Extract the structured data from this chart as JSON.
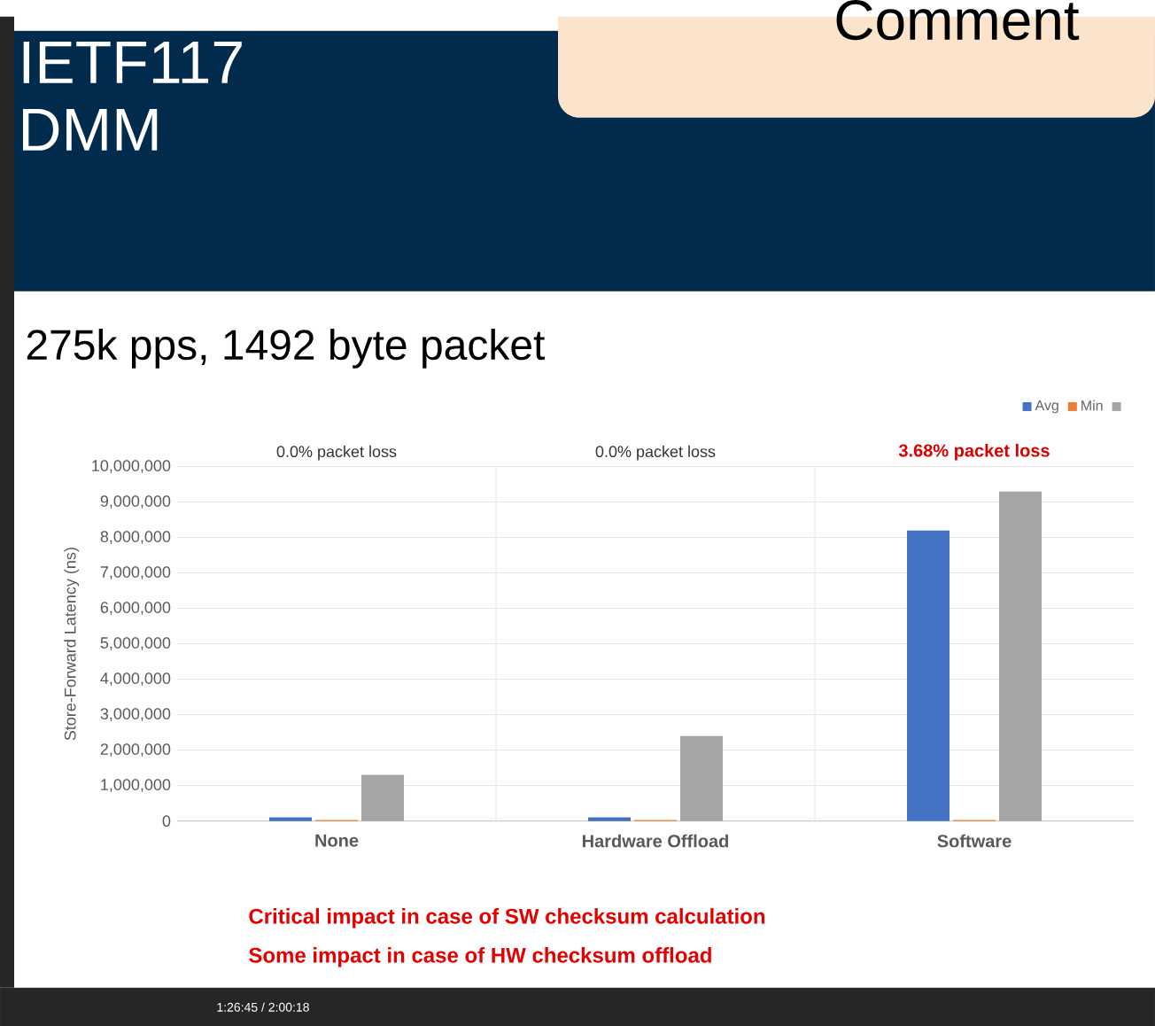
{
  "chart_data": {
    "type": "bar",
    "title": "IETF117\nDMM",
    "subtitle": "275k pps, 1492 byte packet",
    "ylabel": "Store-Forward Latency (ns)",
    "categories": [
      "None",
      "Hardware Offload",
      "Software"
    ],
    "series": [
      {
        "name": "Avg",
        "color": "#4472c4",
        "values": [
          100000,
          100000,
          8200000
        ]
      },
      {
        "name": "Min",
        "color": "#ed7d31",
        "values": [
          30000,
          30000,
          30000
        ]
      },
      {
        "color": "#a5a5a5",
        "values": [
          1300000,
          2400000,
          9300000
        ]
      }
    ],
    "ylim": [
      0,
      10000000
    ],
    "yticks": [
      {
        "value": 0,
        "label": "0"
      },
      {
        "value": 1000000,
        "label": "1,000,000"
      },
      {
        "value": 2000000,
        "label": "2,000,000"
      },
      {
        "value": 3000000,
        "label": "3,000,000"
      },
      {
        "value": 4000000,
        "label": "4,000,000"
      },
      {
        "value": 5000000,
        "label": "5,000,000"
      },
      {
        "value": 6000000,
        "label": "6,000,000"
      },
      {
        "value": 7000000,
        "label": "7,000,000"
      },
      {
        "value": 8000000,
        "label": "8,000,000"
      },
      {
        "value": 9000000,
        "label": "9,000,000"
      },
      {
        "value": 10000000,
        "label": "10,000,000"
      }
    ],
    "grid": "y",
    "legend": "top right",
    "annotations": [
      "0.0% packet loss",
      "0.0% packet loss",
      "**3.68% packet loss**",
      "**Critical impact in case of SW checksum calculation**",
      "**Some impact in case of HW checksum offload**",
      "Comment",
      "1:26:45 / 2:00:18"
    ]
  }
}
